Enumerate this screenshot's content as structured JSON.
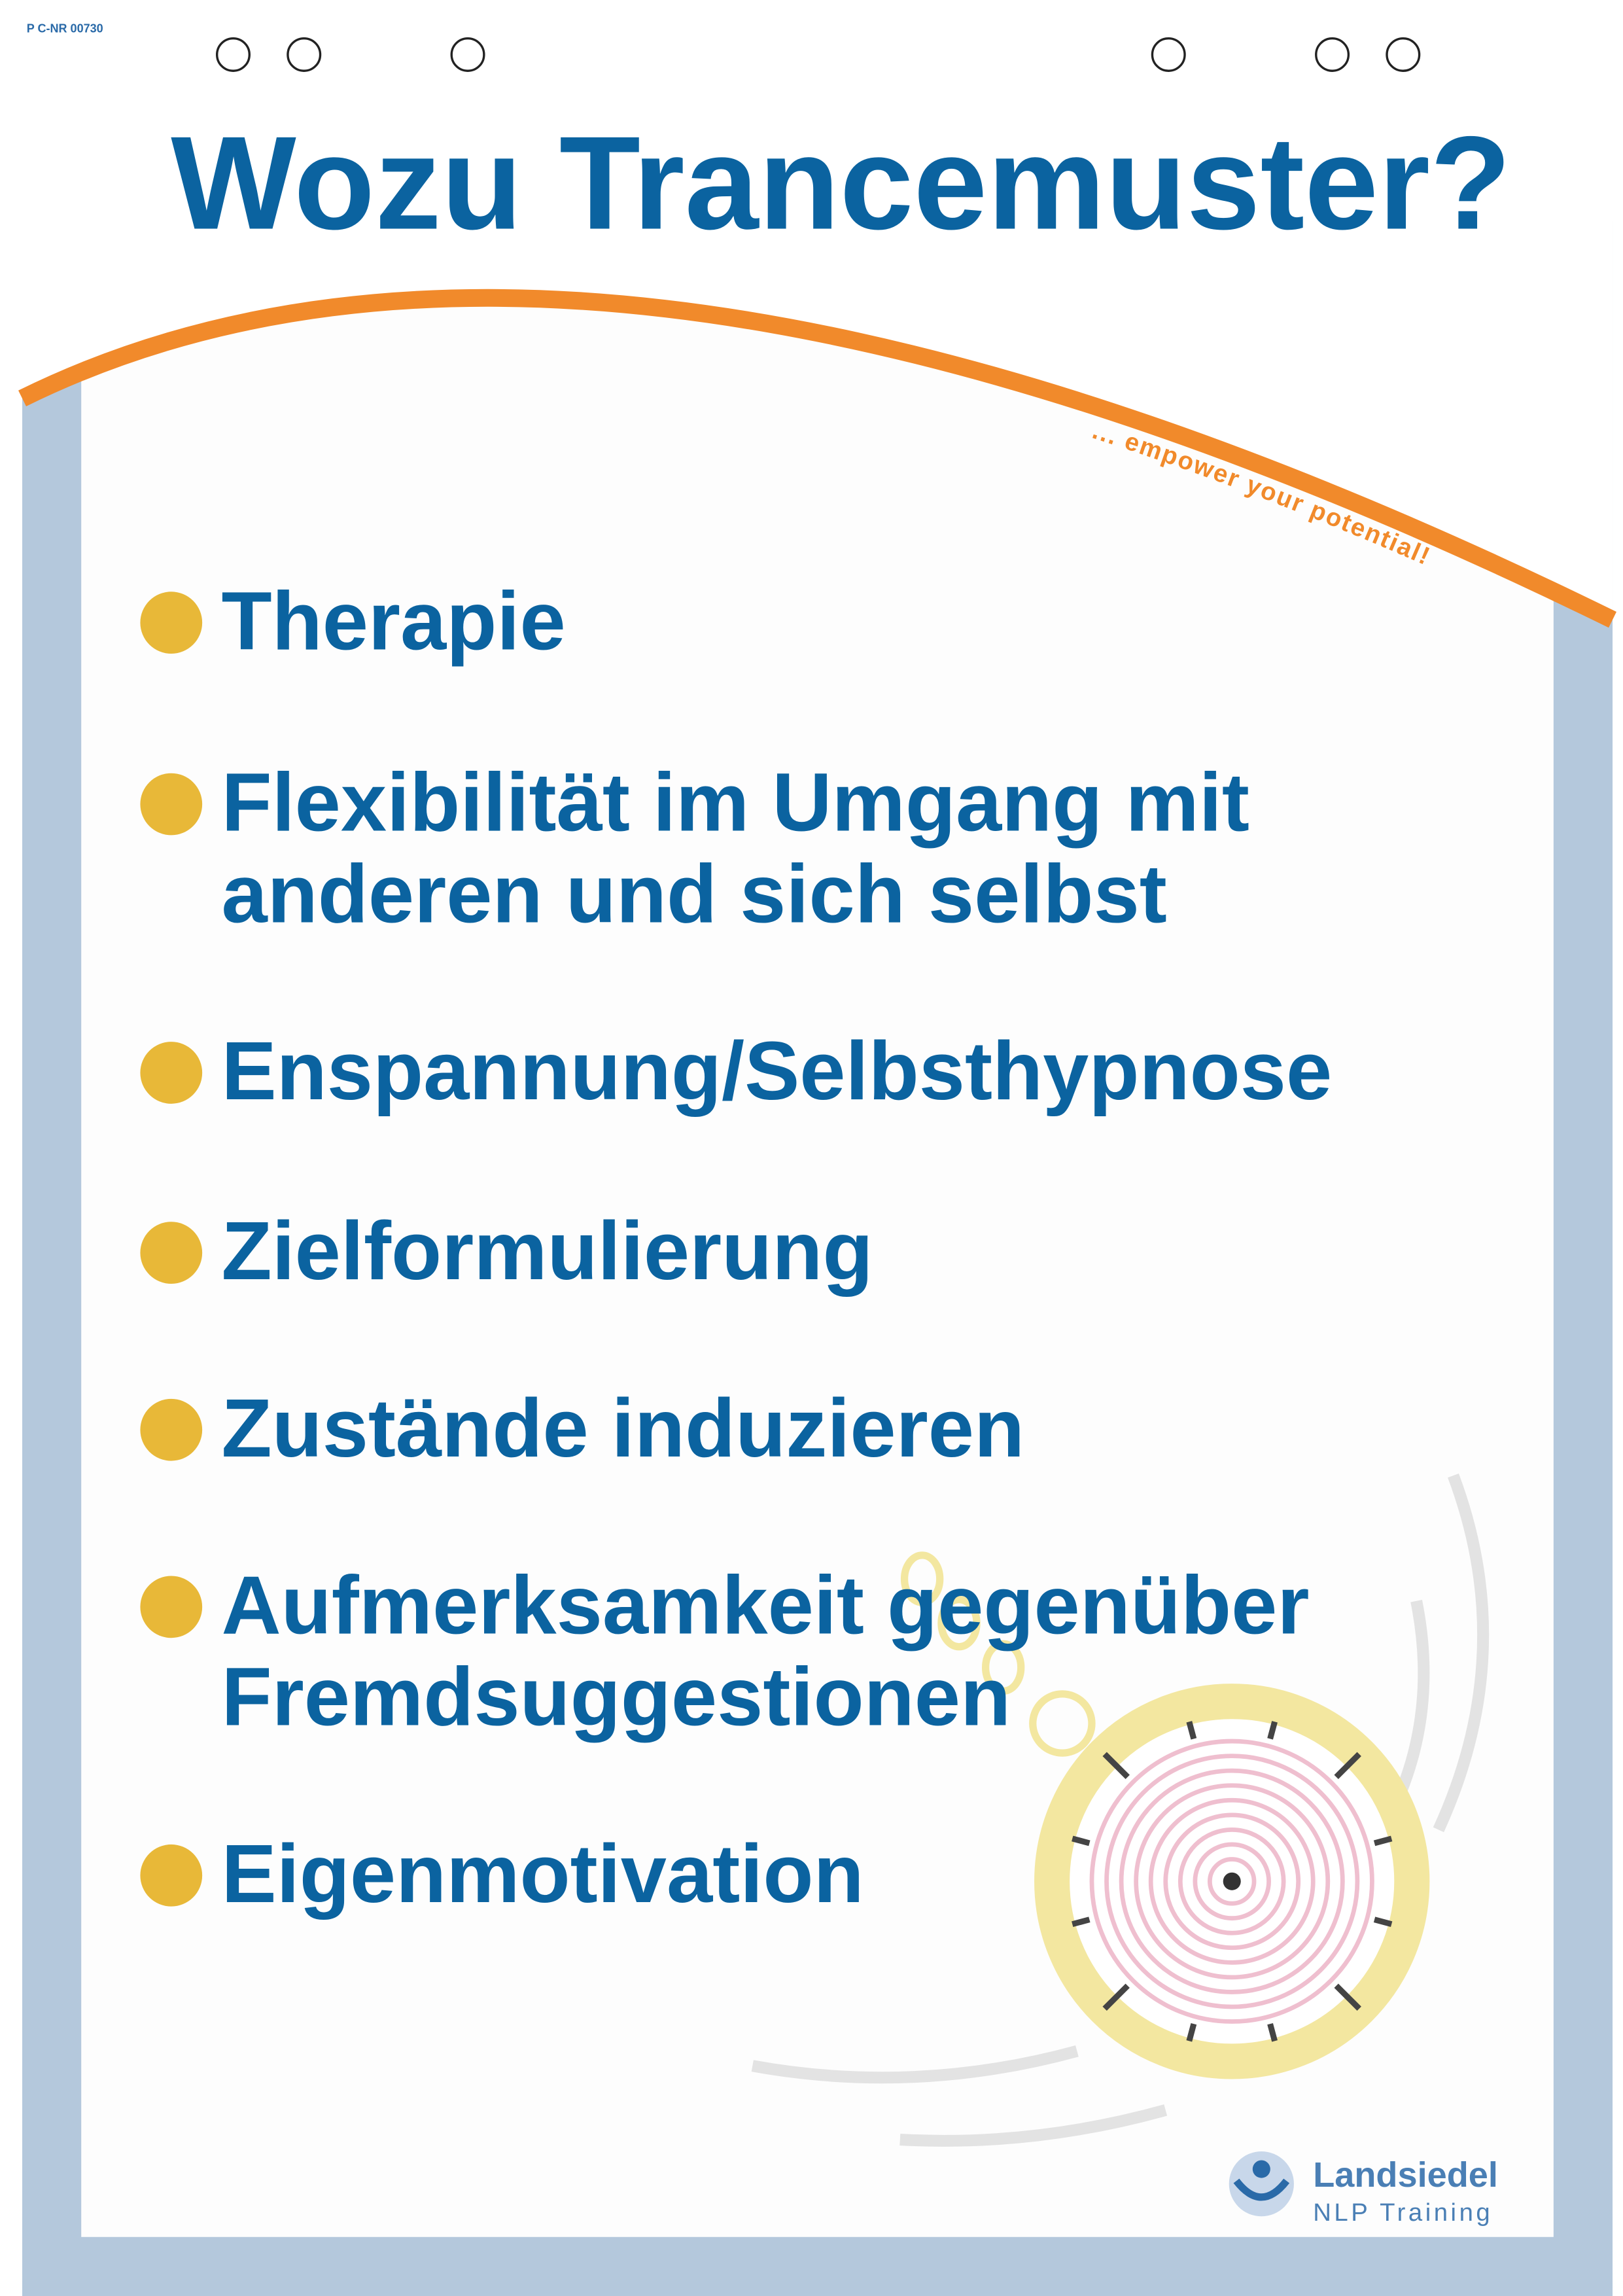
{
  "header": {
    "code": "P C-NR 00730",
    "title": "Wozu Trancemuster?",
    "tagline": "... empower your potential!"
  },
  "items": [
    {
      "lines": [
        "Therapie"
      ]
    },
    {
      "lines": [
        "Flexibilität im Umgang mit",
        "anderen und sich selbst"
      ]
    },
    {
      "lines": [
        "Enspannung/Selbsthypnose"
      ]
    },
    {
      "lines": [
        "Zielformulierung"
      ]
    },
    {
      "lines": [
        "Zustände induzieren"
      ]
    },
    {
      "lines": [
        "Aufmerksamkeit gegenüber",
        "Fremdsuggestionen"
      ]
    },
    {
      "lines": [
        "Eigenmotivation"
      ]
    }
  ],
  "logo": {
    "name": "Landsiedel",
    "subtitle": "NLP Training"
  }
}
